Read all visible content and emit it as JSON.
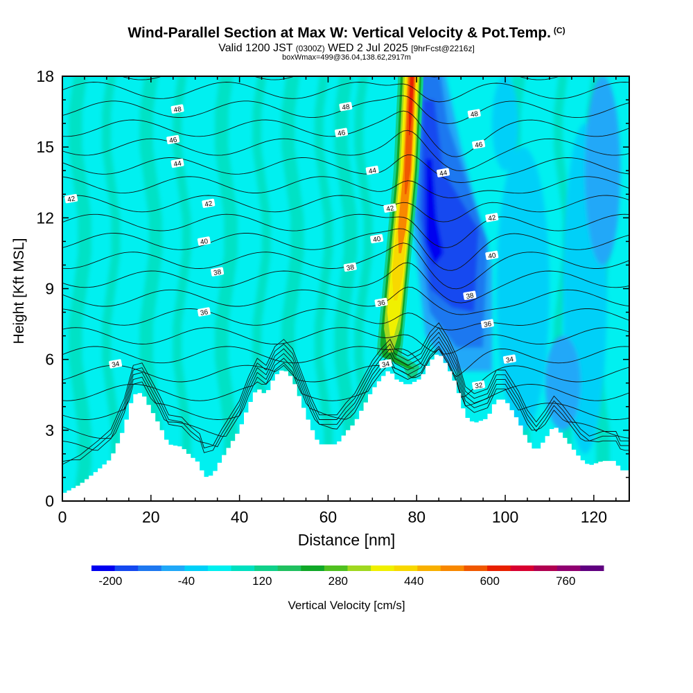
{
  "header": {
    "title": "Wind-Parallel Section at Max W: Vertical Velocity & Pot.Temp.",
    "copyright": "(C)",
    "valid_a": "Valid 1200 JST",
    "valid_z": "(0300Z)",
    "valid_b": "WED 2 Jul 2025",
    "forecast": "[9hrFcst@2216z]",
    "box_info": "boxWmax=499@36.04,138.62,2917m"
  },
  "chart_data": {
    "type": "heatmap",
    "xlabel": "Distance [nm]",
    "ylabel": "Height [Kft MSL]",
    "xlim": [
      0,
      128
    ],
    "ylim": [
      0,
      18
    ],
    "x_ticks": [
      0,
      20,
      40,
      60,
      80,
      100,
      120
    ],
    "y_ticks": [
      0,
      3,
      6,
      9,
      12,
      15,
      18
    ],
    "terrain_kft": [
      [
        0,
        0.3
      ],
      [
        4,
        0.7
      ],
      [
        8,
        1.3
      ],
      [
        11,
        1.8
      ],
      [
        14,
        3.1
      ],
      [
        16,
        4.5
      ],
      [
        18,
        4.6
      ],
      [
        20,
        3.9
      ],
      [
        22,
        3.2
      ],
      [
        24,
        2.4
      ],
      [
        27,
        2.3
      ],
      [
        29,
        1.9
      ],
      [
        31,
        1.6
      ],
      [
        32,
        1.0
      ],
      [
        34,
        1.1
      ],
      [
        36,
        1.8
      ],
      [
        38,
        2.4
      ],
      [
        40,
        3.0
      ],
      [
        42,
        4.0
      ],
      [
        44,
        4.8
      ],
      [
        46,
        4.5
      ],
      [
        48,
        5.3
      ],
      [
        50,
        5.6
      ],
      [
        52,
        5.2
      ],
      [
        54,
        4.2
      ],
      [
        56,
        3.2
      ],
      [
        58,
        2.4
      ],
      [
        62,
        2.4
      ],
      [
        64,
        2.9
      ],
      [
        66,
        3.3
      ],
      [
        68,
        4.0
      ],
      [
        70,
        4.7
      ],
      [
        72,
        5.2
      ],
      [
        74,
        5.6
      ],
      [
        75,
        5.2
      ],
      [
        78,
        4.9
      ],
      [
        81,
        5.2
      ],
      [
        83,
        5.9
      ],
      [
        85,
        6.3
      ],
      [
        87,
        5.7
      ],
      [
        89,
        4.9
      ],
      [
        91,
        3.6
      ],
      [
        93,
        3.3
      ],
      [
        96,
        3.5
      ],
      [
        98,
        4.3
      ],
      [
        100,
        4.3
      ],
      [
        103,
        3.4
      ],
      [
        105,
        2.6
      ],
      [
        107,
        2.1
      ],
      [
        109,
        2.6
      ],
      [
        111,
        3.2
      ],
      [
        113,
        2.8
      ],
      [
        115,
        2.3
      ],
      [
        117,
        1.8
      ],
      [
        119,
        1.5
      ],
      [
        122,
        1.7
      ],
      [
        125,
        1.7
      ],
      [
        126,
        1.3
      ],
      [
        128,
        1.3
      ]
    ],
    "updraft_axis": [
      [
        74,
        6
      ],
      [
        76,
        10
      ],
      [
        78,
        14
      ],
      [
        79,
        18
      ]
    ],
    "updraft_peak_cm_s": 499,
    "downdraft_core": [
      [
        82,
        12
      ],
      [
        92,
        10
      ]
    ],
    "contour_levels_K": [
      30,
      32,
      34,
      36,
      38,
      40,
      42,
      44,
      46,
      48
    ],
    "contour_labels": [
      {
        "x": 12,
        "y": 5.8,
        "text": "34"
      },
      {
        "x": 32,
        "y": 8.0,
        "text": "36"
      },
      {
        "x": 35,
        "y": 9.7,
        "text": "38"
      },
      {
        "x": 32,
        "y": 11.0,
        "text": "40"
      },
      {
        "x": 33,
        "y": 12.6,
        "text": "42"
      },
      {
        "x": 2,
        "y": 12.8,
        "text": "42"
      },
      {
        "x": 26,
        "y": 14.3,
        "text": "44"
      },
      {
        "x": 25,
        "y": 15.3,
        "text": "46"
      },
      {
        "x": 26,
        "y": 16.6,
        "text": "48"
      },
      {
        "x": 64,
        "y": 16.7,
        "text": "48"
      },
      {
        "x": 63,
        "y": 15.6,
        "text": "46"
      },
      {
        "x": 70,
        "y": 14.0,
        "text": "44"
      },
      {
        "x": 74,
        "y": 12.4,
        "text": "42"
      },
      {
        "x": 71,
        "y": 11.1,
        "text": "40"
      },
      {
        "x": 65,
        "y": 9.9,
        "text": "38"
      },
      {
        "x": 72,
        "y": 8.4,
        "text": "36"
      },
      {
        "x": 73,
        "y": 5.8,
        "text": "34"
      },
      {
        "x": 93,
        "y": 16.4,
        "text": "48"
      },
      {
        "x": 94,
        "y": 15.1,
        "text": "46"
      },
      {
        "x": 86,
        "y": 13.9,
        "text": "44"
      },
      {
        "x": 97,
        "y": 12.0,
        "text": "42"
      },
      {
        "x": 97,
        "y": 10.4,
        "text": "40"
      },
      {
        "x": 92,
        "y": 8.7,
        "text": "38"
      },
      {
        "x": 96,
        "y": 7.5,
        "text": "36"
      },
      {
        "x": 101,
        "y": 6.0,
        "text": "34"
      },
      {
        "x": 94,
        "y": 4.9,
        "text": "32"
      }
    ],
    "colorbar": {
      "label": "Vertical Velocity [cm/s]",
      "tick_values": [
        -200,
        -40,
        120,
        280,
        440,
        600,
        760
      ],
      "colors": [
        "#0000f0",
        "#1448f0",
        "#1e78f0",
        "#20a8f8",
        "#00d0f8",
        "#00f0f0",
        "#00e0c0",
        "#10d08a",
        "#20c060",
        "#10a828",
        "#50c020",
        "#a0d820",
        "#f0f000",
        "#f8d800",
        "#f8b000",
        "#f88800",
        "#f05800",
        "#e82000",
        "#d80030",
        "#b00050",
        "#900070",
        "#600080"
      ]
    }
  }
}
